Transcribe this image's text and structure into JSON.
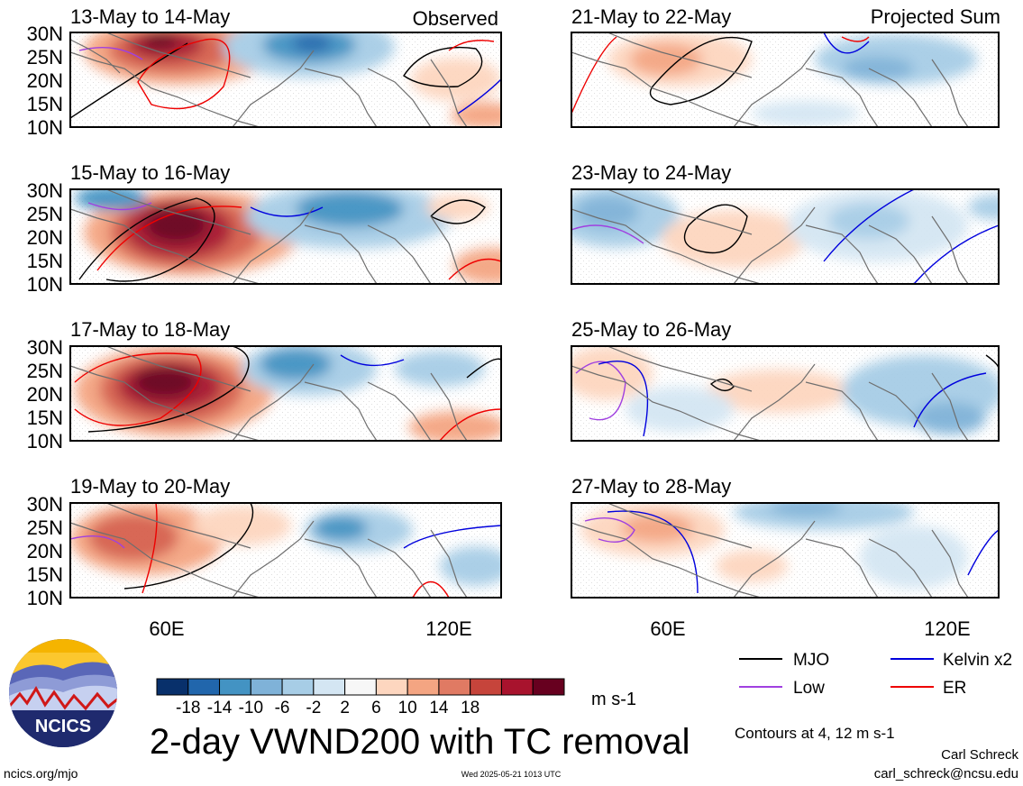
{
  "panels": [
    {
      "id": "p1",
      "label": "13-May to 14-May",
      "tag": "Observed"
    },
    {
      "id": "p2",
      "label": "15-May to 16-May",
      "tag": ""
    },
    {
      "id": "p3",
      "label": "17-May to 18-May",
      "tag": ""
    },
    {
      "id": "p4",
      "label": "19-May to 20-May",
      "tag": ""
    },
    {
      "id": "p5",
      "label": "21-May to 22-May",
      "tag": "Projected Sum"
    },
    {
      "id": "p6",
      "label": "23-May to 24-May",
      "tag": ""
    },
    {
      "id": "p7",
      "label": "25-May to 26-May",
      "tag": ""
    },
    {
      "id": "p8",
      "label": "27-May to 28-May",
      "tag": ""
    }
  ],
  "lat_ticks": [
    "30N",
    "25N",
    "20N",
    "15N",
    "10N"
  ],
  "lon_ticks": [
    "60E",
    "120E"
  ],
  "colorbar": {
    "labels": [
      "-18",
      "-14",
      "-10",
      "-6",
      "-2",
      "2",
      "6",
      "10",
      "14",
      "18"
    ],
    "unit": "m s-1",
    "colors": [
      "#08306b",
      "#2166ac",
      "#4393c3",
      "#7fb2d8",
      "#a7cde6",
      "#d4e6f3",
      "#f7f7f7",
      "#fdd6bf",
      "#f4a582",
      "#e07a63",
      "#c6443b",
      "#a8132d",
      "#67001f"
    ]
  },
  "legend": {
    "items": [
      {
        "label": "MJO",
        "color": "#000000"
      },
      {
        "label": "Kelvin x2",
        "color": "#0000dd"
      },
      {
        "label": "Low",
        "color": "#a040e0"
      },
      {
        "label": "ER",
        "color": "#ee0000"
      }
    ],
    "contours_note": "Contours at 4, 12 m s-1"
  },
  "title": "2-day VWND200 with TC removal",
  "logo_text": "NCICS",
  "footer": {
    "url": "ncics.org/mjo",
    "timestamp": "Wed 2025-05-21 1013 UTC",
    "author": "Carl Schreck",
    "email": "carl_schreck@ncsu.edu"
  }
}
